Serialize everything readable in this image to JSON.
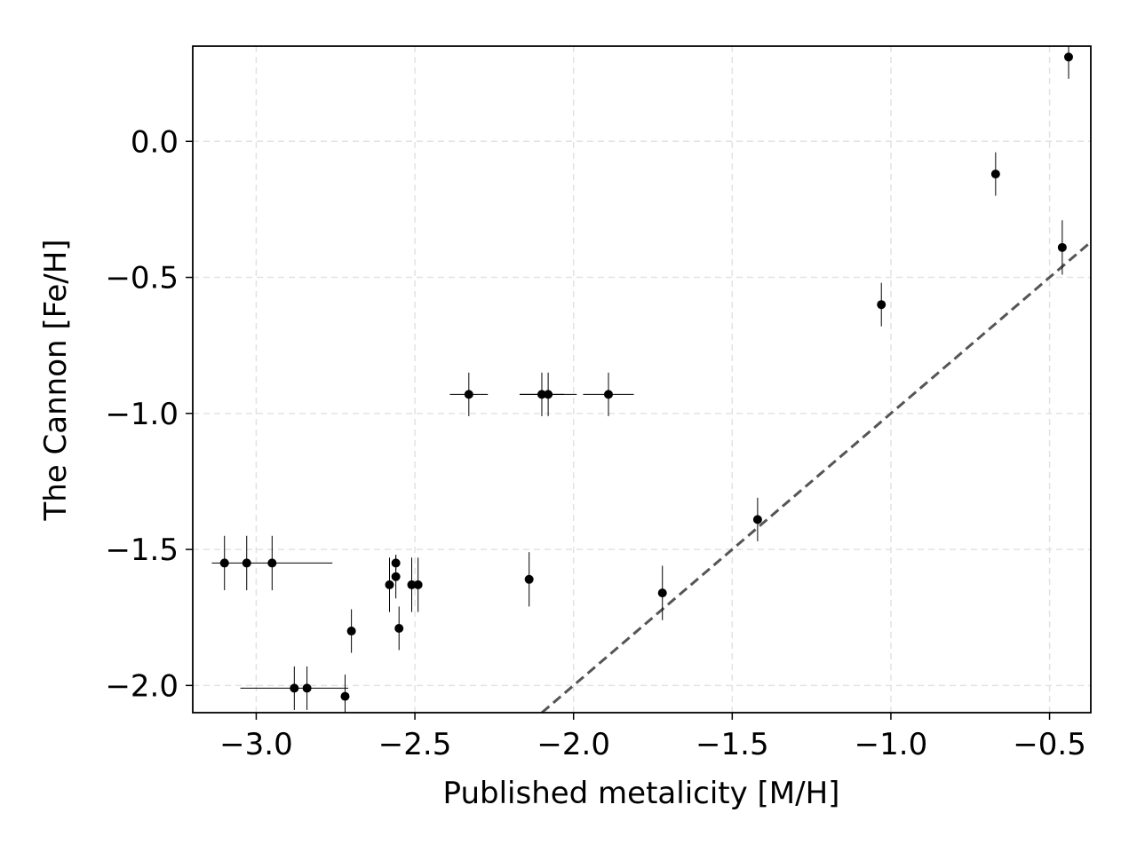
{
  "chart_data": {
    "type": "scatter",
    "xlabel": "Published metalicity [M/H]",
    "ylabel": "The Cannon [Fe/H]",
    "xlim": [
      -3.2,
      -0.37
    ],
    "ylim": [
      -2.1,
      0.35
    ],
    "grid": true,
    "xticks": [
      -3.0,
      -2.5,
      -2.0,
      -1.5,
      -1.0,
      -0.5
    ],
    "xtick_labels": [
      "−3.0",
      "−2.5",
      "−2.0",
      "−1.5",
      "−1.0",
      "−0.5"
    ],
    "yticks": [
      0.0,
      -0.5,
      -1.0,
      -1.5,
      -2.0
    ],
    "ytick_labels": [
      "0.0",
      "−0.5",
      "−1.0",
      "−1.5",
      "−2.0"
    ],
    "reference_line": {
      "type": "identity",
      "style": "dashed",
      "color": "#555555"
    },
    "marker_color": "#000000",
    "points": [
      {
        "x": -3.1,
        "y": -1.55,
        "xerr": 0.0,
        "yerr": 0.1
      },
      {
        "x": -3.03,
        "y": -1.55,
        "xerr": 0.0,
        "yerr": 0.1
      },
      {
        "x": -2.95,
        "y": -1.55,
        "xerr": 0.19,
        "yerr": 0.1
      },
      {
        "x": -2.88,
        "y": -2.01,
        "xerr": 0.17,
        "yerr": 0.08
      },
      {
        "x": -2.84,
        "y": -2.01,
        "xerr": 0.0,
        "yerr": 0.08
      },
      {
        "x": -2.72,
        "y": -2.04,
        "xerr": 0.0,
        "yerr": 0.08
      },
      {
        "x": -2.7,
        "y": -1.8,
        "xerr": 0.0,
        "yerr": 0.08
      },
      {
        "x": -2.58,
        "y": -1.63,
        "xerr": 0.0,
        "yerr": 0.1
      },
      {
        "x": -2.56,
        "y": -1.55,
        "xerr": 0.0,
        "yerr": 0.03
      },
      {
        "x": -2.56,
        "y": -1.6,
        "xerr": 0.0,
        "yerr": 0.08
      },
      {
        "x": -2.55,
        "y": -1.79,
        "xerr": 0.0,
        "yerr": 0.08
      },
      {
        "x": -2.51,
        "y": -1.63,
        "xerr": 0.0,
        "yerr": 0.1
      },
      {
        "x": -2.49,
        "y": -1.63,
        "xerr": 0.0,
        "yerr": 0.1
      },
      {
        "x": -2.33,
        "y": -0.93,
        "xerr": 0.06,
        "yerr": 0.08
      },
      {
        "x": -2.14,
        "y": -1.61,
        "xerr": 0.0,
        "yerr": 0.1
      },
      {
        "x": -2.1,
        "y": -0.93,
        "xerr": 0.07,
        "yerr": 0.08
      },
      {
        "x": -2.08,
        "y": -0.93,
        "xerr": 0.09,
        "yerr": 0.08
      },
      {
        "x": -1.89,
        "y": -0.93,
        "xerr": 0.08,
        "yerr": 0.08
      },
      {
        "x": -1.72,
        "y": -1.66,
        "xerr": 0.0,
        "yerr": 0.1
      },
      {
        "x": -1.42,
        "y": -1.39,
        "xerr": 0.0,
        "yerr": 0.08
      },
      {
        "x": -1.03,
        "y": -0.6,
        "xerr": 0.0,
        "yerr": 0.08
      },
      {
        "x": -0.67,
        "y": -0.12,
        "xerr": 0.0,
        "yerr": 0.08
      },
      {
        "x": -0.46,
        "y": -0.39,
        "xerr": 0.0,
        "yerr": 0.1
      },
      {
        "x": -0.44,
        "y": 0.31,
        "xerr": 0.0,
        "yerr": 0.08
      }
    ]
  }
}
